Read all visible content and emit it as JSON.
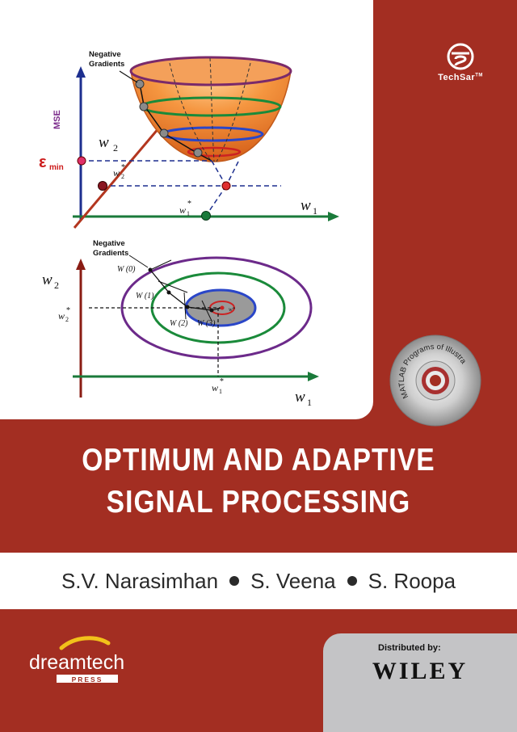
{
  "book": {
    "title_line1": "OPTIMUM AND ADAPTIVE",
    "title_line2": "SIGNAL PROCESSING",
    "authors": [
      "S.V. Narasimhan",
      "S. Veena",
      "S. Roopa"
    ],
    "publisher_brand": "TechSar",
    "publisher_brand_tm": "TM",
    "imprint": "dreamtech",
    "imprint_sub": "PRESS",
    "distributed_by_label": "Distributed by:",
    "distributor": "WILEY",
    "cd_label": "MATLAB Programs of Illustrations"
  },
  "figure_top": {
    "neg_grad_line1": "Negative",
    "neg_grad_line2": "Gradients",
    "mse": "MSE",
    "emin": "ε",
    "emin_sub": "min",
    "w2": "w",
    "w2_sub": "2",
    "w2_star": "w",
    "w2_star_sub": "2",
    "w1_star": "w",
    "w1_star_sub": "1",
    "w1": "w",
    "w1_sub": "1",
    "star": "*"
  },
  "figure_bottom": {
    "neg_grad_line1": "Negative",
    "neg_grad_line2": "Gradients",
    "w2": "w",
    "w2_sub": "2",
    "w2_star": "w",
    "w2_star_sub": "2",
    "w1_star": "w",
    "w1_star_sub": "1",
    "w1": "w",
    "w1_sub": "1",
    "star": "*",
    "W0": "W (0)",
    "W1": "W (1)",
    "W2": "W (2)",
    "W3": "W (3)",
    "wstar": "w*"
  },
  "colors": {
    "cover_red": "#a32e22",
    "bowl_orange": "#f08a3c",
    "axis_blue": "#1d2f8f",
    "axis_green": "#1a7a3a",
    "purple": "#6c2a8a",
    "distributor_panel": "#c4c4c6"
  }
}
